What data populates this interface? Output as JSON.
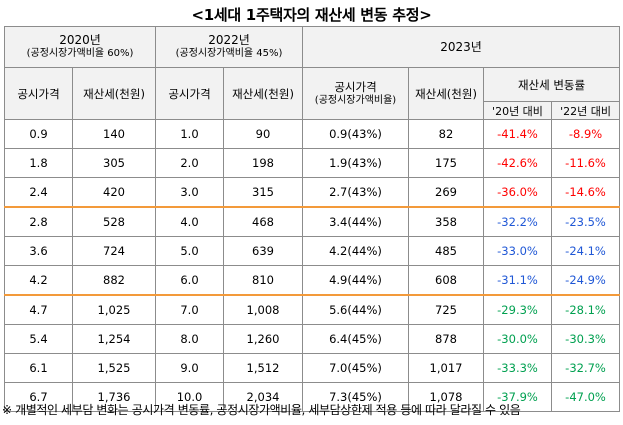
{
  "title": "<1세대 1주택자의 재산세 변동 추정>",
  "header": {
    "y2020": "2020년",
    "y2020_sub": "(공정시장가액비율 60%)",
    "y2022": "2022년",
    "y2022_sub": "(공정시장가액비율 45%)",
    "y2023": "2023년",
    "col_price": "공시가격",
    "col_tax": "재산세(천원)",
    "col_price_2023": "공시가격",
    "col_price_2023_sub": "(공정시장가액비율)",
    "col_rate": "재산세 변동률",
    "col_vs20": "'20년 대비",
    "col_vs22": "'22년 대비"
  },
  "rows": [
    {
      "p20": "0.9",
      "t20": "140",
      "p22": "1.0",
      "t22": "90",
      "p23": "0.9(43%)",
      "t23": "82",
      "r20": "-41.4%",
      "r22": "-8.9%"
    },
    {
      "p20": "1.8",
      "t20": "305",
      "p22": "2.0",
      "t22": "198",
      "p23": "1.9(43%)",
      "t23": "175",
      "r20": "-42.6%",
      "r22": "-11.6%"
    },
    {
      "p20": "2.4",
      "t20": "420",
      "p22": "3.0",
      "t22": "315",
      "p23": "2.7(43%)",
      "t23": "269",
      "r20": "-36.0%",
      "r22": "-14.6%"
    },
    {
      "p20": "2.8",
      "t20": "528",
      "p22": "4.0",
      "t22": "468",
      "p23": "3.4(44%)",
      "t23": "358",
      "r20": "-32.2%",
      "r22": "-23.5%"
    },
    {
      "p20": "3.6",
      "t20": "724",
      "p22": "5.0",
      "t22": "639",
      "p23": "4.2(44%)",
      "t23": "485",
      "r20": "-33.0%",
      "r22": "-24.1%"
    },
    {
      "p20": "4.2",
      "t20": "882",
      "p22": "6.0",
      "t22": "810",
      "p23": "4.9(44%)",
      "t23": "608",
      "r20": "-31.1%",
      "r22": "-24.9%"
    },
    {
      "p20": "4.7",
      "t20": "1,025",
      "p22": "7.0",
      "t22": "1,008",
      "p23": "5.6(44%)",
      "t23": "725",
      "r20": "-29.3%",
      "r22": "-28.1%"
    },
    {
      "p20": "5.4",
      "t20": "1,254",
      "p22": "8.0",
      "t22": "1,260",
      "p23": "6.4(45%)",
      "t23": "878",
      "r20": "-30.0%",
      "r22": "-30.3%"
    },
    {
      "p20": "6.1",
      "t20": "1,525",
      "p22": "9.0",
      "t22": "1,512",
      "p23": "7.0(45%)",
      "t23": "1,017",
      "r20": "-33.3%",
      "r22": "-32.7%"
    },
    {
      "p20": "6.7",
      "t20": "1,736",
      "p22": "10.0",
      "t22": "2,034",
      "p23": "7.3(45%)",
      "t23": "1,078",
      "r20": "-37.9%",
      "r22": "-47.0%"
    }
  ],
  "note": "※ 개별적인 세부담 변화는 공시가격 변동률, 공정시장가액비율, 세부담상한제 적용 등에 따라 달라질 수 있음",
  "colors": {
    "group1": "#ff0000",
    "group2": "#1f57d6",
    "group3": "#00a050",
    "separator": "#f39a3a"
  }
}
